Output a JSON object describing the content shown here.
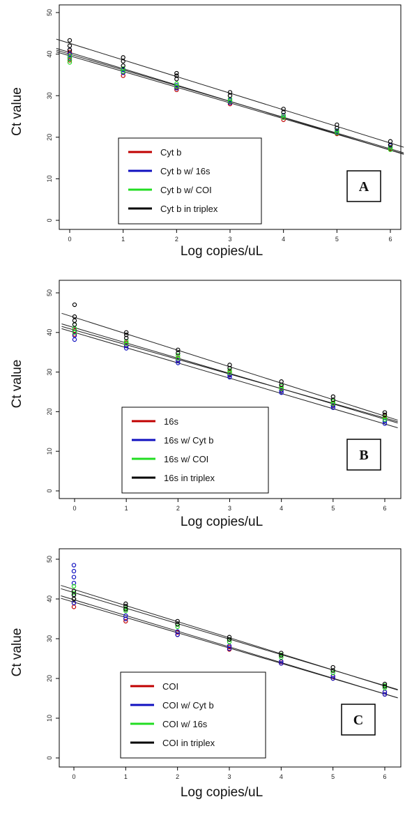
{
  "chart_data": [
    {
      "type": "scatter",
      "panel_label": "A",
      "xlabel": "Log copies/uL",
      "ylabel": "Ct value",
      "xlim": [
        0,
        6
      ],
      "ylim": [
        0,
        50
      ],
      "x_ticks": [
        "0",
        "1",
        "2",
        "3",
        "4",
        "5",
        "6"
      ],
      "y_ticks": [
        "0",
        "10",
        "20",
        "30",
        "40",
        "50"
      ],
      "grid": false,
      "legend_position": "bottom-left",
      "series": [
        {
          "name": "Cyt b",
          "color": "#c00000",
          "fit": {
            "intercept": 39.6,
            "slope": -3.78
          },
          "points": [
            [
              0,
              38.5
            ],
            [
              0,
              39.5
            ],
            [
              0,
              40.5
            ],
            [
              1,
              34.8
            ],
            [
              1,
              35.6
            ],
            [
              2,
              31.4
            ],
            [
              2,
              32.0
            ],
            [
              3,
              28.0
            ],
            [
              3,
              28.5
            ],
            [
              4,
              24.2
            ],
            [
              4,
              24.8
            ],
            [
              5,
              20.8
            ],
            [
              5,
              21.2
            ],
            [
              6,
              17.2
            ],
            [
              6,
              17.6
            ]
          ]
        },
        {
          "name": "Cyt b w/ 16s",
          "color": "#1010c0",
          "fit": {
            "intercept": 40.0,
            "slope": -3.8
          },
          "points": [
            [
              0,
              39.0
            ],
            [
              0,
              40.0
            ],
            [
              0,
              41.0
            ],
            [
              1,
              35.5
            ],
            [
              1,
              36.2
            ],
            [
              2,
              31.8
            ],
            [
              2,
              32.5
            ],
            [
              3,
              28.3
            ],
            [
              3,
              28.9
            ],
            [
              4,
              24.8
            ],
            [
              4,
              25.3
            ],
            [
              5,
              21.2
            ],
            [
              5,
              21.6
            ],
            [
              6,
              17.5
            ],
            [
              6,
              18.0
            ]
          ]
        },
        {
          "name": "Cyt b w/ COI",
          "color": "#22dd22",
          "fit": {
            "intercept": 40.4,
            "slope": -3.92
          },
          "points": [
            [
              0,
              38.0
            ],
            [
              0,
              38.8
            ],
            [
              0,
              39.6
            ],
            [
              1,
              35.8
            ],
            [
              1,
              36.5
            ],
            [
              2,
              32.2
            ],
            [
              2,
              32.9
            ],
            [
              3,
              28.6
            ],
            [
              3,
              29.2
            ],
            [
              4,
              24.7
            ],
            [
              4,
              25.2
            ],
            [
              5,
              21.0
            ],
            [
              5,
              21.5
            ],
            [
              6,
              17.0
            ],
            [
              6,
              17.5
            ]
          ]
        },
        {
          "name": "Cyt b in triplex",
          "color": "#000000",
          "fit": {
            "intercept": 42.6,
            "slope": -4.0
          },
          "points": [
            [
              0,
              41.0
            ],
            [
              0,
              42.0
            ],
            [
              0,
              43.3
            ],
            [
              1,
              37.2
            ],
            [
              1,
              38.3
            ],
            [
              1,
              39.2
            ],
            [
              2,
              34.0
            ],
            [
              2,
              34.8
            ],
            [
              2,
              35.4
            ],
            [
              3,
              30.0
            ],
            [
              3,
              30.8
            ],
            [
              4,
              26.0
            ],
            [
              4,
              26.8
            ],
            [
              5,
              22.2
            ],
            [
              5,
              23.0
            ],
            [
              6,
              18.2
            ],
            [
              6,
              19.0
            ]
          ]
        }
      ]
    },
    {
      "type": "scatter",
      "panel_label": "B",
      "xlabel": "Log copies/uL",
      "ylabel": "Ct value",
      "xlim": [
        0,
        6
      ],
      "ylim": [
        0,
        50
      ],
      "x_ticks": [
        "0",
        "1",
        "2",
        "3",
        "4",
        "5",
        "6"
      ],
      "y_ticks": [
        "0",
        "10",
        "20",
        "30",
        "40",
        "50"
      ],
      "grid": false,
      "legend_position": "bottom-left",
      "series": [
        {
          "name": "16s",
          "color": "#c00000",
          "fit": {
            "intercept": 40.6,
            "slope": -3.7
          },
          "points": [
            [
              0,
              39.5
            ],
            [
              0,
              40.5
            ],
            [
              1,
              36.8
            ],
            [
              1,
              37.4
            ],
            [
              2,
              33.0
            ],
            [
              2,
              33.6
            ],
            [
              3,
              29.4
            ],
            [
              3,
              30.0
            ],
            [
              4,
              25.4
            ],
            [
              4,
              26.0
            ],
            [
              5,
              21.6
            ],
            [
              5,
              22.2
            ],
            [
              6,
              18.5
            ],
            [
              6,
              19.0
            ]
          ]
        },
        {
          "name": "16s w/ Cyt b",
          "color": "#1010c0",
          "fit": {
            "intercept": 40.0,
            "slope": -3.85
          },
          "points": [
            [
              0,
              38.2
            ],
            [
              0,
              39.2
            ],
            [
              0,
              40.2
            ],
            [
              1,
              36.0
            ],
            [
              1,
              36.6
            ],
            [
              2,
              32.3
            ],
            [
              2,
              32.9
            ],
            [
              3,
              28.7
            ],
            [
              3,
              29.2
            ],
            [
              4,
              24.8
            ],
            [
              4,
              25.3
            ],
            [
              5,
              21.0
            ],
            [
              5,
              21.5
            ],
            [
              6,
              17.0
            ],
            [
              6,
              17.6
            ]
          ]
        },
        {
          "name": "16s w/ COI",
          "color": "#22dd22",
          "fit": {
            "intercept": 41.2,
            "slope": -3.85
          },
          "points": [
            [
              0,
              40.0
            ],
            [
              0,
              41.0
            ],
            [
              0,
              42.0
            ],
            [
              1,
              37.2
            ],
            [
              1,
              37.8
            ],
            [
              2,
              33.5
            ],
            [
              2,
              34.2
            ],
            [
              3,
              29.8
            ],
            [
              3,
              30.4
            ],
            [
              4,
              25.8
            ],
            [
              4,
              26.4
            ],
            [
              5,
              22.0
            ],
            [
              5,
              22.6
            ],
            [
              6,
              18.0
            ],
            [
              6,
              18.6
            ]
          ]
        },
        {
          "name": "16s in triplex",
          "color": "#000000",
          "fit": {
            "intercept": 43.8,
            "slope": -4.15
          },
          "points": [
            [
              0,
              42.0
            ],
            [
              0,
              43.0
            ],
            [
              0,
              44.0
            ],
            [
              0,
              47.0
            ],
            [
              1,
              38.6
            ],
            [
              1,
              39.4
            ],
            [
              1,
              40.0
            ],
            [
              2,
              34.8
            ],
            [
              2,
              35.6
            ],
            [
              3,
              31.0
            ],
            [
              3,
              31.8
            ],
            [
              4,
              26.8
            ],
            [
              4,
              27.6
            ],
            [
              5,
              23.0
            ],
            [
              5,
              23.8
            ],
            [
              6,
              19.2
            ],
            [
              6,
              19.8
            ]
          ]
        }
      ]
    },
    {
      "type": "scatter",
      "panel_label": "C",
      "xlabel": "Log copies/uL",
      "ylabel": "Ct value",
      "xlim": [
        0,
        6
      ],
      "ylim": [
        0,
        50
      ],
      "x_ticks": [
        "0",
        "1",
        "2",
        "3",
        "4",
        "5",
        "6"
      ],
      "y_ticks": [
        "0",
        "10",
        "20",
        "30",
        "40",
        "50"
      ],
      "grid": false,
      "legend_position": "bottom-left",
      "series": [
        {
          "name": "COI",
          "color": "#c00000",
          "fit": {
            "intercept": 39.2,
            "slope": -3.85
          },
          "points": [
            [
              0,
              38.0
            ],
            [
              0,
              39.0
            ],
            [
              0,
              40.0
            ],
            [
              1,
              34.4
            ],
            [
              1,
              35.0
            ],
            [
              2,
              31.0
            ],
            [
              2,
              31.6
            ],
            [
              3,
              27.3
            ],
            [
              3,
              27.9
            ],
            [
              4,
              23.8
            ],
            [
              4,
              24.2
            ],
            [
              5,
              20.0
            ],
            [
              5,
              20.5
            ],
            [
              6,
              16.0
            ],
            [
              6,
              16.6
            ]
          ]
        },
        {
          "name": "COI w/ Cyt b",
          "color": "#1010c0",
          "fit": {
            "intercept": 39.8,
            "slope": -3.95
          },
          "points": [
            [
              0,
              39.0
            ],
            [
              0,
              41.0
            ],
            [
              0,
              44.0
            ],
            [
              0,
              45.5
            ],
            [
              0,
              47.0
            ],
            [
              0,
              48.5
            ],
            [
              1,
              35.0
            ],
            [
              1,
              35.8
            ],
            [
              2,
              31.0
            ],
            [
              2,
              31.8
            ],
            [
              3,
              27.5
            ],
            [
              3,
              28.2
            ],
            [
              4,
              23.8
            ],
            [
              4,
              24.3
            ],
            [
              5,
              20.0
            ],
            [
              5,
              20.6
            ],
            [
              6,
              16.0
            ],
            [
              6,
              16.6
            ]
          ]
        },
        {
          "name": "COI w/ 16s",
          "color": "#22dd22",
          "fit": {
            "intercept": 41.6,
            "slope": -3.9
          },
          "points": [
            [
              0,
              40.0
            ],
            [
              0,
              41.5
            ],
            [
              0,
              43.2
            ],
            [
              1,
              37.0
            ],
            [
              1,
              37.6
            ],
            [
              2,
              33.0
            ],
            [
              2,
              33.6
            ],
            [
              3,
              29.2
            ],
            [
              3,
              29.8
            ],
            [
              4,
              25.3
            ],
            [
              4,
              25.9
            ],
            [
              5,
              21.4
            ],
            [
              5,
              22.0
            ],
            [
              6,
              17.6
            ],
            [
              6,
              18.2
            ]
          ]
        },
        {
          "name": "COI in triplex",
          "color": "#000000",
          "fit": {
            "intercept": 42.4,
            "slope": -4.05
          },
          "points": [
            [
              0,
              40.0
            ],
            [
              0,
              41.0
            ],
            [
              0,
              42.0
            ],
            [
              1,
              37.4
            ],
            [
              1,
              38.2
            ],
            [
              1,
              38.8
            ],
            [
              2,
              33.6
            ],
            [
              2,
              34.4
            ],
            [
              3,
              29.8
            ],
            [
              3,
              30.4
            ],
            [
              4,
              25.8
            ],
            [
              4,
              26.4
            ],
            [
              5,
              22.0
            ],
            [
              5,
              22.8
            ],
            [
              6,
              18.0
            ],
            [
              6,
              18.6
            ]
          ]
        }
      ]
    }
  ]
}
